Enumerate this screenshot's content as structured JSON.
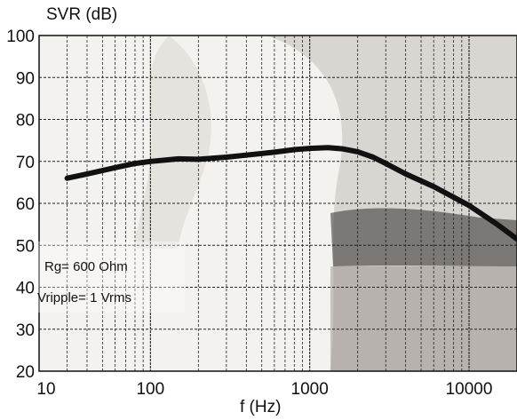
{
  "chart_data": {
    "type": "line",
    "title": "",
    "xlabel": "f (Hz)",
    "ylabel": "SVR (dB)",
    "xscale": "log",
    "xlim": [
      20,
      20000
    ],
    "ylim": [
      20,
      100
    ],
    "grid": true,
    "x_ticks": [
      10,
      100,
      1000,
      10000
    ],
    "x_tick_labels": [
      "10",
      "100",
      "1000",
      "10000"
    ],
    "y_ticks": [
      20,
      30,
      40,
      50,
      60,
      70,
      80,
      90,
      100
    ],
    "y_tick_labels": [
      "20",
      "30",
      "40",
      "50",
      "60",
      "70",
      "80",
      "90",
      "100"
    ],
    "annotations": [
      "Rg= 600 Ohm",
      "Vripple= 1 Vrms"
    ],
    "series": [
      {
        "name": "",
        "color": "#111111",
        "x": [
          30,
          40,
          60,
          80,
          100,
          150,
          200,
          300,
          400,
          600,
          800,
          1000,
          1300,
          1600,
          2000,
          2500,
          3000,
          4000,
          6000,
          10000,
          15000,
          20000
        ],
        "y": [
          66,
          67,
          68.5,
          69.5,
          70,
          70.6,
          70.5,
          71,
          71.5,
          72.2,
          72.8,
          73.1,
          73.3,
          73,
          72.3,
          71,
          69.5,
          67,
          64,
          59.5,
          55,
          51.5
        ]
      }
    ]
  }
}
